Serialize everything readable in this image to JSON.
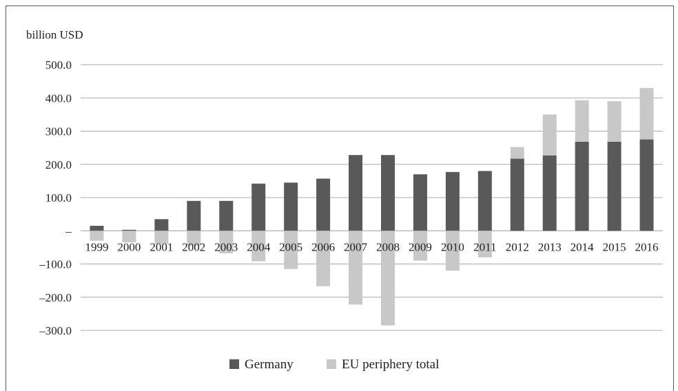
{
  "chart_data": {
    "type": "bar",
    "stacked": true,
    "ylabel": "billion USD",
    "ylim": [
      -300,
      500
    ],
    "yticks": [
      -300,
      -200,
      -100,
      0,
      100,
      200,
      300,
      400,
      500
    ],
    "ytick_labels": [
      "–300.0",
      "–200.0",
      "–100.0",
      "–",
      "100.0",
      "200.0",
      "300.0",
      "400.0",
      "500.0"
    ],
    "categories": [
      "1999",
      "2000",
      "2001",
      "2002",
      "2003",
      "2004",
      "2005",
      "2006",
      "2007",
      "2008",
      "2009",
      "2010",
      "2011",
      "2012",
      "2013",
      "2014",
      "2015",
      "2016"
    ],
    "series": [
      {
        "name": "Germany",
        "color": "#595959",
        "values": [
          15,
          3,
          35,
          90,
          90,
          142,
          145,
          157,
          228,
          228,
          170,
          177,
          180,
          217,
          227,
          268,
          268,
          275
        ]
      },
      {
        "name": "EU periphery total",
        "color": "#c8c8c8",
        "values": [
          -30,
          -35,
          -40,
          -45,
          -68,
          -92,
          -115,
          -167,
          -222,
          -285,
          -90,
          -120,
          -80,
          35,
          123,
          125,
          122,
          155
        ]
      }
    ],
    "grid": true,
    "legend": "bottom-center"
  }
}
